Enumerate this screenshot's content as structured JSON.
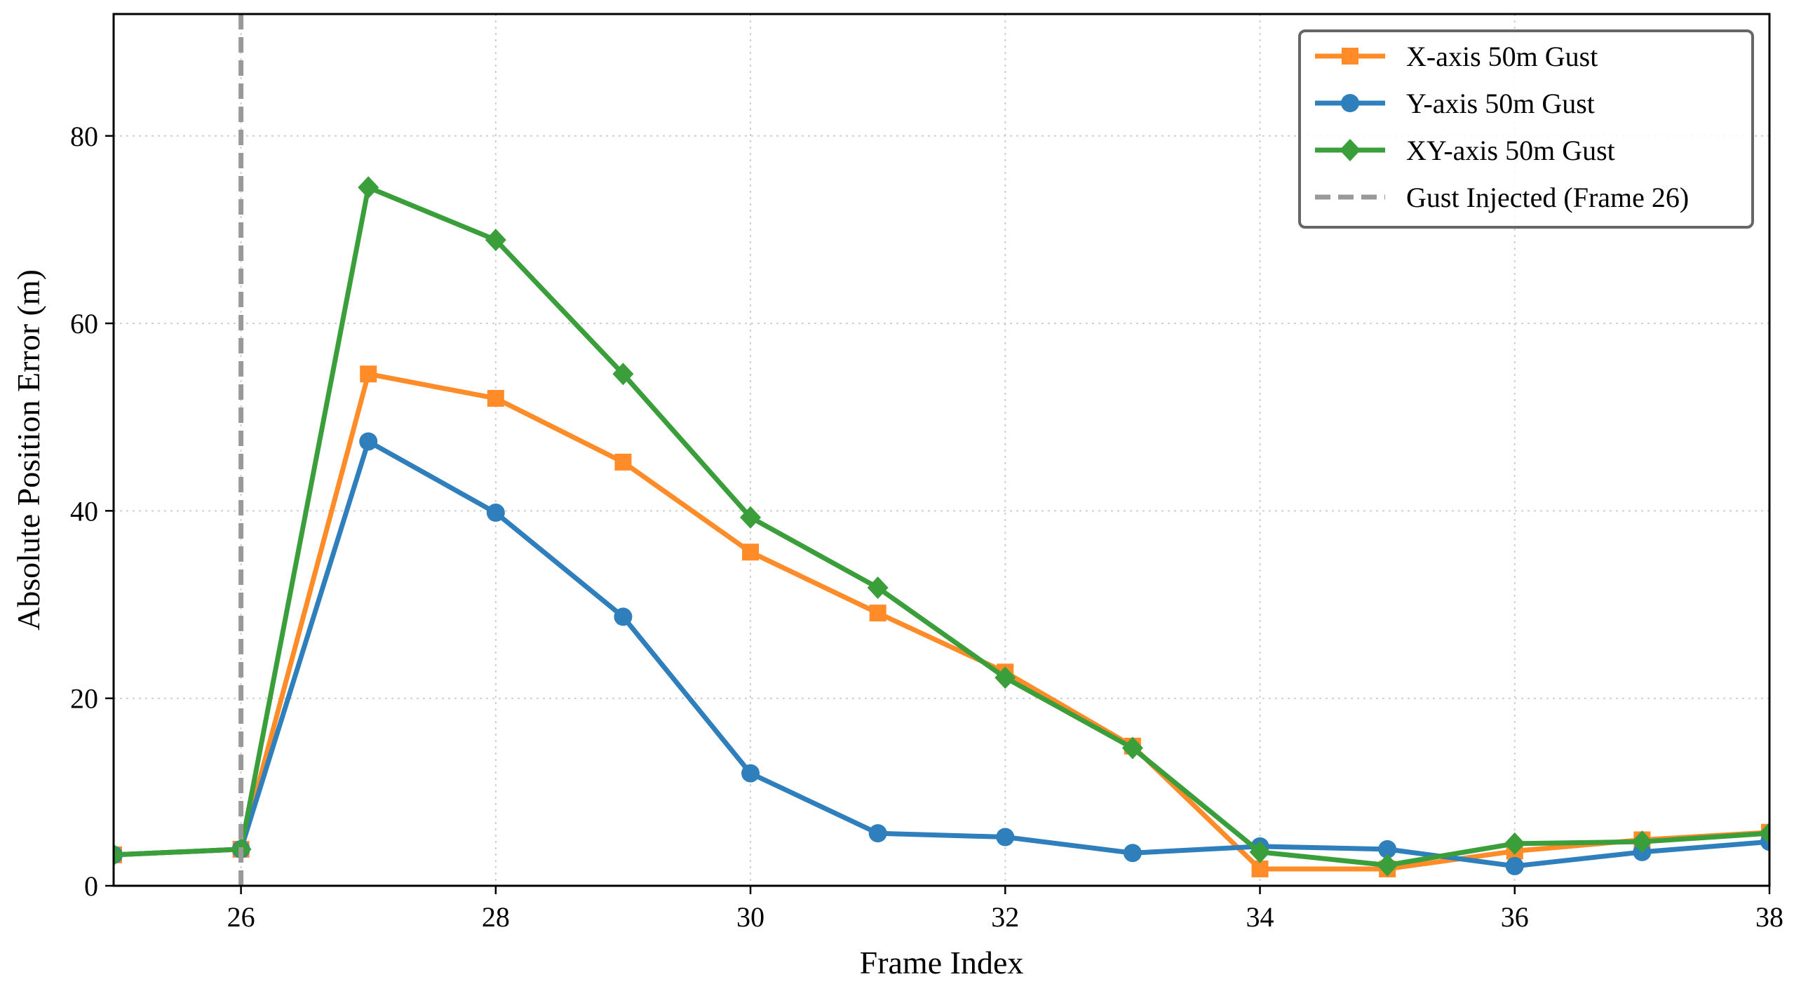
{
  "chart_data": {
    "type": "line",
    "title": "",
    "xlabel": "Frame Index",
    "ylabel": "Absolute Position Error (m)",
    "xlim": [
      25,
      38
    ],
    "ylim": [
      0,
      93
    ],
    "xticks": [
      26,
      28,
      30,
      32,
      34,
      36,
      38
    ],
    "yticks": [
      0,
      20,
      40,
      60,
      80
    ],
    "grid": true,
    "legend_position": "top-right",
    "x": [
      25,
      26,
      27,
      28,
      29,
      30,
      31,
      32,
      33,
      34,
      35,
      36,
      37,
      38
    ],
    "series": [
      {
        "name": "X-axis 50m Gust",
        "color": "#ff8c28",
        "marker": "square",
        "values": [
          3.3,
          3.9,
          54.6,
          52.0,
          45.2,
          35.6,
          29.1,
          22.8,
          14.9,
          1.8,
          1.8,
          3.7,
          4.9,
          5.7
        ]
      },
      {
        "name": "Y-axis 50m Gust",
        "color": "#2f7fbc",
        "marker": "circle",
        "values": [
          3.3,
          3.9,
          47.4,
          39.8,
          28.7,
          12.0,
          5.6,
          5.2,
          3.5,
          4.2,
          3.9,
          2.1,
          3.6,
          4.7
        ]
      },
      {
        "name": "XY-axis 50m Gust",
        "color": "#3a9e3a",
        "marker": "diamond",
        "values": [
          3.3,
          3.9,
          74.5,
          68.9,
          54.6,
          39.3,
          31.8,
          22.2,
          14.7,
          3.6,
          2.2,
          4.5,
          4.7,
          5.6
        ]
      }
    ],
    "vline": {
      "x": 26,
      "name": "Gust Injected (Frame 26)",
      "color": "#999999",
      "style": "dashed"
    }
  }
}
